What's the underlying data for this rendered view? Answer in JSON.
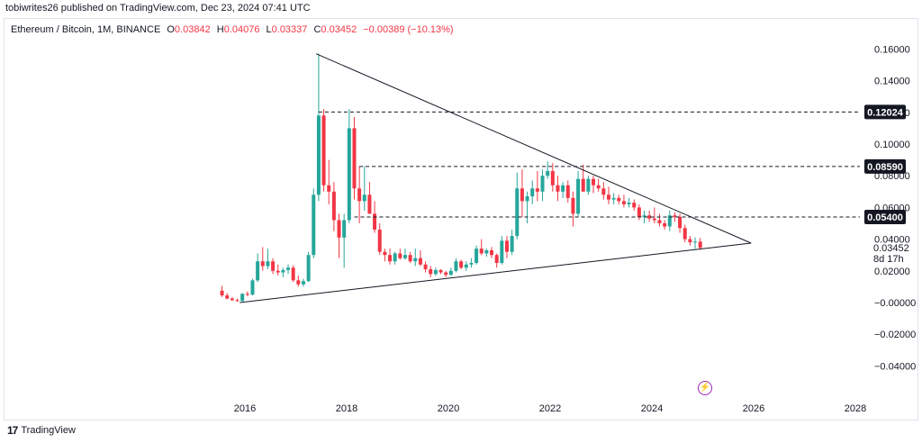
{
  "header": {
    "published": "tobiwrites26 published on TradingView.com, Dec 23, 2024 07:41 UTC"
  },
  "legend": {
    "symbol": "Ethereum / Bitcoin, 1M, BINANCE",
    "open_label": "O",
    "open_value": "0.03842",
    "high_label": "H",
    "high_value": "0.04076",
    "low_label": "L",
    "low_value": "0.03337",
    "close_label": "C",
    "close_value": "0.03452",
    "change": "−0.00389 (−10.13%)"
  },
  "price_axis": {
    "ticks": [
      "0.16000",
      "0.14000",
      "0.12000",
      "0.10000",
      "0.08000",
      "0.06000",
      "0.04000",
      "0.02000",
      "−0.00000",
      "−0.02000",
      "−0.04000"
    ],
    "tick_values": [
      0.16,
      0.14,
      0.12,
      0.1,
      0.08,
      0.06,
      0.04,
      0.02,
      0.0,
      -0.02,
      -0.04
    ]
  },
  "time_axis": {
    "ticks": [
      "2016",
      "2018",
      "2020",
      "2022",
      "2024",
      "2026",
      "2028"
    ],
    "tick_values": [
      2016,
      2018,
      2020,
      2022,
      2024,
      2026,
      2028
    ]
  },
  "last_price": {
    "value": "0.03452",
    "countdown": "8d 17h"
  },
  "colors": {
    "up": "#26a69a",
    "down": "#f23645",
    "line": "#131722",
    "grid": "#e0e3eb",
    "label_bg": "#131722",
    "label_text": "#ffffff"
  },
  "chart_data": {
    "type": "candlestick",
    "title": "Ethereum / Bitcoin, 1M, BINANCE",
    "ylim": [
      -0.05,
      0.17
    ],
    "xlim": [
      2014.9,
      2028.0
    ],
    "grid": false,
    "horizontal_levels": [
      {
        "label": "0.12024",
        "value": 0.12024,
        "from_x": 2017.45
      },
      {
        "label": "0.08590",
        "value": 0.0859,
        "from_x": 2018.25
      },
      {
        "label": "0.05400",
        "value": 0.054,
        "from_x": 2018.15
      }
    ],
    "trendlines": [
      {
        "from": [
          2017.4,
          0.157
        ],
        "to": [
          2025.95,
          0.0375
        ]
      },
      {
        "from": [
          2015.9,
          0.0
        ],
        "to": [
          2025.95,
          0.0375
        ]
      }
    ],
    "candles": [
      {
        "t": 2015.55,
        "o": 0.0075,
        "h": 0.0105,
        "l": 0.0035,
        "c": 0.0045
      },
      {
        "t": 2015.65,
        "o": 0.0045,
        "h": 0.006,
        "l": 0.002,
        "c": 0.0025
      },
      {
        "t": 2015.75,
        "o": 0.0025,
        "h": 0.0035,
        "l": 0.001,
        "c": 0.0015
      },
      {
        "t": 2015.85,
        "o": 0.0015,
        "h": 0.0025,
        "l": 0.0005,
        "c": 0.001
      },
      {
        "t": 2015.95,
        "o": 0.001,
        "h": 0.006,
        "l": 0.0005,
        "c": 0.0055
      },
      {
        "t": 2016.05,
        "o": 0.0055,
        "h": 0.007,
        "l": 0.004,
        "c": 0.005
      },
      {
        "t": 2016.15,
        "o": 0.005,
        "h": 0.015,
        "l": 0.0045,
        "c": 0.014
      },
      {
        "t": 2016.25,
        "o": 0.014,
        "h": 0.031,
        "l": 0.013,
        "c": 0.026
      },
      {
        "t": 2016.35,
        "o": 0.026,
        "h": 0.035,
        "l": 0.02,
        "c": 0.023
      },
      {
        "t": 2016.45,
        "o": 0.023,
        "h": 0.034,
        "l": 0.021,
        "c": 0.026
      },
      {
        "t": 2016.55,
        "o": 0.026,
        "h": 0.028,
        "l": 0.018,
        "c": 0.02
      },
      {
        "t": 2016.65,
        "o": 0.02,
        "h": 0.024,
        "l": 0.017,
        "c": 0.019
      },
      {
        "t": 2016.75,
        "o": 0.019,
        "h": 0.022,
        "l": 0.016,
        "c": 0.0205
      },
      {
        "t": 2016.85,
        "o": 0.0205,
        "h": 0.024,
        "l": 0.018,
        "c": 0.022
      },
      {
        "t": 2016.95,
        "o": 0.022,
        "h": 0.0235,
        "l": 0.013,
        "c": 0.014
      },
      {
        "t": 2017.05,
        "o": 0.014,
        "h": 0.017,
        "l": 0.01,
        "c": 0.0115
      },
      {
        "t": 2017.15,
        "o": 0.0115,
        "h": 0.015,
        "l": 0.01,
        "c": 0.0135
      },
      {
        "t": 2017.25,
        "o": 0.0135,
        "h": 0.032,
        "l": 0.013,
        "c": 0.03
      },
      {
        "t": 2017.35,
        "o": 0.03,
        "h": 0.072,
        "l": 0.028,
        "c": 0.068
      },
      {
        "t": 2017.45,
        "o": 0.068,
        "h": 0.157,
        "l": 0.064,
        "c": 0.118
      },
      {
        "t": 2017.55,
        "o": 0.118,
        "h": 0.122,
        "l": 0.07,
        "c": 0.074
      },
      {
        "t": 2017.65,
        "o": 0.074,
        "h": 0.09,
        "l": 0.062,
        "c": 0.07
      },
      {
        "t": 2017.75,
        "o": 0.07,
        "h": 0.076,
        "l": 0.045,
        "c": 0.052
      },
      {
        "t": 2017.85,
        "o": 0.052,
        "h": 0.056,
        "l": 0.028,
        "c": 0.041
      },
      {
        "t": 2017.95,
        "o": 0.041,
        "h": 0.056,
        "l": 0.022,
        "c": 0.052
      },
      {
        "t": 2018.05,
        "o": 0.052,
        "h": 0.122,
        "l": 0.05,
        "c": 0.11
      },
      {
        "t": 2018.15,
        "o": 0.11,
        "h": 0.117,
        "l": 0.065,
        "c": 0.072
      },
      {
        "t": 2018.25,
        "o": 0.072,
        "h": 0.086,
        "l": 0.05,
        "c": 0.064
      },
      {
        "t": 2018.35,
        "o": 0.064,
        "h": 0.086,
        "l": 0.058,
        "c": 0.068
      },
      {
        "t": 2018.45,
        "o": 0.068,
        "h": 0.076,
        "l": 0.056,
        "c": 0.056
      },
      {
        "t": 2018.55,
        "o": 0.056,
        "h": 0.064,
        "l": 0.044,
        "c": 0.046
      },
      {
        "t": 2018.65,
        "o": 0.046,
        "h": 0.05,
        "l": 0.03,
        "c": 0.032
      },
      {
        "t": 2018.75,
        "o": 0.032,
        "h": 0.034,
        "l": 0.026,
        "c": 0.03
      },
      {
        "t": 2018.85,
        "o": 0.03,
        "h": 0.034,
        "l": 0.024,
        "c": 0.026
      },
      {
        "t": 2018.95,
        "o": 0.026,
        "h": 0.032,
        "l": 0.024,
        "c": 0.031
      },
      {
        "t": 2019.05,
        "o": 0.031,
        "h": 0.034,
        "l": 0.027,
        "c": 0.028
      },
      {
        "t": 2019.15,
        "o": 0.028,
        "h": 0.034,
        "l": 0.027,
        "c": 0.03
      },
      {
        "t": 2019.25,
        "o": 0.03,
        "h": 0.032,
        "l": 0.025,
        "c": 0.026
      },
      {
        "t": 2019.35,
        "o": 0.026,
        "h": 0.034,
        "l": 0.023,
        "c": 0.028
      },
      {
        "t": 2019.45,
        "o": 0.028,
        "h": 0.033,
        "l": 0.023,
        "c": 0.024
      },
      {
        "t": 2019.55,
        "o": 0.024,
        "h": 0.026,
        "l": 0.019,
        "c": 0.021
      },
      {
        "t": 2019.65,
        "o": 0.021,
        "h": 0.023,
        "l": 0.016,
        "c": 0.018
      },
      {
        "t": 2019.75,
        "o": 0.018,
        "h": 0.022,
        "l": 0.017,
        "c": 0.0205
      },
      {
        "t": 2019.85,
        "o": 0.0205,
        "h": 0.021,
        "l": 0.018,
        "c": 0.019
      },
      {
        "t": 2019.95,
        "o": 0.019,
        "h": 0.02,
        "l": 0.016,
        "c": 0.0175
      },
      {
        "t": 2020.05,
        "o": 0.0175,
        "h": 0.022,
        "l": 0.017,
        "c": 0.02
      },
      {
        "t": 2020.15,
        "o": 0.02,
        "h": 0.028,
        "l": 0.019,
        "c": 0.026
      },
      {
        "t": 2020.25,
        "o": 0.026,
        "h": 0.027,
        "l": 0.021,
        "c": 0.022
      },
      {
        "t": 2020.35,
        "o": 0.022,
        "h": 0.026,
        "l": 0.02,
        "c": 0.024
      },
      {
        "t": 2020.45,
        "o": 0.024,
        "h": 0.028,
        "l": 0.022,
        "c": 0.025
      },
      {
        "t": 2020.55,
        "o": 0.025,
        "h": 0.036,
        "l": 0.024,
        "c": 0.034
      },
      {
        "t": 2020.65,
        "o": 0.034,
        "h": 0.04,
        "l": 0.03,
        "c": 0.031
      },
      {
        "t": 2020.75,
        "o": 0.031,
        "h": 0.034,
        "l": 0.029,
        "c": 0.033
      },
      {
        "t": 2020.85,
        "o": 0.033,
        "h": 0.035,
        "l": 0.028,
        "c": 0.03
      },
      {
        "t": 2020.95,
        "o": 0.03,
        "h": 0.031,
        "l": 0.022,
        "c": 0.025
      },
      {
        "t": 2021.05,
        "o": 0.025,
        "h": 0.042,
        "l": 0.024,
        "c": 0.039
      },
      {
        "t": 2021.15,
        "o": 0.039,
        "h": 0.042,
        "l": 0.028,
        "c": 0.032
      },
      {
        "t": 2021.25,
        "o": 0.032,
        "h": 0.046,
        "l": 0.03,
        "c": 0.042
      },
      {
        "t": 2021.35,
        "o": 0.042,
        "h": 0.082,
        "l": 0.04,
        "c": 0.072
      },
      {
        "t": 2021.45,
        "o": 0.072,
        "h": 0.084,
        "l": 0.054,
        "c": 0.064
      },
      {
        "t": 2021.55,
        "o": 0.064,
        "h": 0.07,
        "l": 0.05,
        "c": 0.067
      },
      {
        "t": 2021.65,
        "o": 0.067,
        "h": 0.077,
        "l": 0.062,
        "c": 0.072
      },
      {
        "t": 2021.75,
        "o": 0.072,
        "h": 0.083,
        "l": 0.064,
        "c": 0.07
      },
      {
        "t": 2021.85,
        "o": 0.07,
        "h": 0.084,
        "l": 0.064,
        "c": 0.08
      },
      {
        "t": 2021.95,
        "o": 0.08,
        "h": 0.089,
        "l": 0.078,
        "c": 0.083
      },
      {
        "t": 2022.05,
        "o": 0.083,
        "h": 0.088,
        "l": 0.07,
        "c": 0.074
      },
      {
        "t": 2022.15,
        "o": 0.074,
        "h": 0.08,
        "l": 0.064,
        "c": 0.07
      },
      {
        "t": 2022.25,
        "o": 0.07,
        "h": 0.076,
        "l": 0.066,
        "c": 0.074
      },
      {
        "t": 2022.35,
        "o": 0.074,
        "h": 0.077,
        "l": 0.063,
        "c": 0.066
      },
      {
        "t": 2022.45,
        "o": 0.066,
        "h": 0.07,
        "l": 0.048,
        "c": 0.056
      },
      {
        "t": 2022.55,
        "o": 0.056,
        "h": 0.083,
        "l": 0.054,
        "c": 0.078
      },
      {
        "t": 2022.65,
        "o": 0.078,
        "h": 0.087,
        "l": 0.07,
        "c": 0.07
      },
      {
        "t": 2022.75,
        "o": 0.07,
        "h": 0.08,
        "l": 0.068,
        "c": 0.078
      },
      {
        "t": 2022.85,
        "o": 0.078,
        "h": 0.08,
        "l": 0.069,
        "c": 0.074
      },
      {
        "t": 2022.95,
        "o": 0.074,
        "h": 0.078,
        "l": 0.07,
        "c": 0.072
      },
      {
        "t": 2023.05,
        "o": 0.072,
        "h": 0.076,
        "l": 0.065,
        "c": 0.068
      },
      {
        "t": 2023.15,
        "o": 0.068,
        "h": 0.073,
        "l": 0.062,
        "c": 0.065
      },
      {
        "t": 2023.25,
        "o": 0.065,
        "h": 0.069,
        "l": 0.062,
        "c": 0.066
      },
      {
        "t": 2023.35,
        "o": 0.066,
        "h": 0.068,
        "l": 0.062,
        "c": 0.064
      },
      {
        "t": 2023.45,
        "o": 0.064,
        "h": 0.068,
        "l": 0.06,
        "c": 0.062
      },
      {
        "t": 2023.55,
        "o": 0.062,
        "h": 0.066,
        "l": 0.06,
        "c": 0.063
      },
      {
        "t": 2023.65,
        "o": 0.063,
        "h": 0.065,
        "l": 0.058,
        "c": 0.06
      },
      {
        "t": 2023.75,
        "o": 0.06,
        "h": 0.062,
        "l": 0.052,
        "c": 0.054
      },
      {
        "t": 2023.85,
        "o": 0.054,
        "h": 0.058,
        "l": 0.05,
        "c": 0.055
      },
      {
        "t": 2023.95,
        "o": 0.055,
        "h": 0.058,
        "l": 0.051,
        "c": 0.053
      },
      {
        "t": 2024.05,
        "o": 0.053,
        "h": 0.06,
        "l": 0.05,
        "c": 0.052
      },
      {
        "t": 2024.15,
        "o": 0.052,
        "h": 0.056,
        "l": 0.048,
        "c": 0.05
      },
      {
        "t": 2024.25,
        "o": 0.05,
        "h": 0.052,
        "l": 0.046,
        "c": 0.048
      },
      {
        "t": 2024.35,
        "o": 0.048,
        "h": 0.058,
        "l": 0.045,
        "c": 0.055
      },
      {
        "t": 2024.45,
        "o": 0.055,
        "h": 0.057,
        "l": 0.051,
        "c": 0.054
      },
      {
        "t": 2024.55,
        "o": 0.054,
        "h": 0.056,
        "l": 0.044,
        "c": 0.047
      },
      {
        "t": 2024.65,
        "o": 0.047,
        "h": 0.049,
        "l": 0.038,
        "c": 0.04
      },
      {
        "t": 2024.75,
        "o": 0.04,
        "h": 0.042,
        "l": 0.036,
        "c": 0.038
      },
      {
        "t": 2024.85,
        "o": 0.038,
        "h": 0.041,
        "l": 0.034,
        "c": 0.0384
      },
      {
        "t": 2024.95,
        "o": 0.03842,
        "h": 0.04076,
        "l": 0.03337,
        "c": 0.03452
      }
    ]
  },
  "footer": {
    "brand": "TradingView"
  }
}
